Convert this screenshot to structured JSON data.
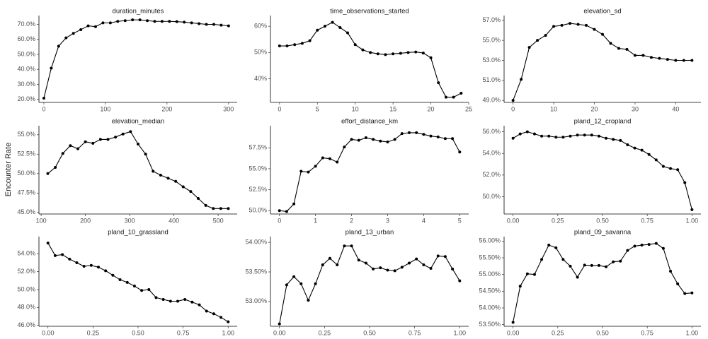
{
  "ylabel": "Encounter Rate",
  "chart_data": [
    {
      "type": "line",
      "title": "duration_minutes",
      "color": "#000000",
      "x": [
        0,
        12,
        24,
        36,
        48,
        60,
        72,
        84,
        96,
        108,
        120,
        132,
        144,
        156,
        168,
        180,
        192,
        204,
        216,
        228,
        240,
        252,
        264,
        276,
        288,
        300
      ],
      "values": [
        20.8,
        40.8,
        55.5,
        61,
        64,
        66.5,
        69,
        68.5,
        71,
        71,
        72,
        72.5,
        73,
        73,
        72.5,
        72,
        72,
        72,
        71.8,
        71.5,
        71,
        70.5,
        70,
        70,
        69.5,
        69
      ],
      "xlim": [
        -8,
        314
      ],
      "xticks": [
        0,
        100,
        200,
        300
      ],
      "ylim": [
        18,
        74
      ],
      "yticks": [
        {
          "value": 20,
          "label": "20.0%"
        },
        {
          "value": 30,
          "label": "30.0%"
        },
        {
          "value": 40,
          "label": "40.0%"
        },
        {
          "value": 50,
          "label": "50.0%"
        },
        {
          "value": 60,
          "label": "60.0%"
        },
        {
          "value": 70,
          "label": "70.0%"
        }
      ]
    },
    {
      "type": "line",
      "title": "time_observations_started",
      "color": "#000000",
      "x": [
        0,
        1,
        2,
        3,
        4,
        5,
        6,
        7,
        8,
        9,
        10,
        11,
        12,
        13,
        14,
        15,
        16,
        17,
        18,
        19,
        20,
        21,
        22,
        23,
        24
      ],
      "values": [
        52.5,
        52.5,
        53,
        53.5,
        54.5,
        58.5,
        60,
        61.5,
        59.5,
        57.5,
        53,
        51,
        50,
        49.5,
        49.2,
        49.5,
        49.7,
        50,
        50.2,
        49.8,
        48,
        38.5,
        33,
        33,
        34.5
      ],
      "xlim": [
        -1.2,
        25
      ],
      "xticks": [
        0,
        5,
        10,
        15,
        20,
        25
      ],
      "ylim": [
        31,
        63
      ],
      "yticks": [
        {
          "value": 40,
          "label": "40%"
        },
        {
          "value": 50,
          "label": "50%"
        },
        {
          "value": 60,
          "label": "60%"
        }
      ]
    },
    {
      "type": "line",
      "title": "elevation_sd",
      "color": "#000000",
      "x": [
        0,
        2,
        4,
        6,
        8,
        10,
        12,
        14,
        16,
        18,
        20,
        22,
        24,
        26,
        28,
        30,
        32,
        34,
        36,
        38,
        40,
        42,
        44
      ],
      "values": [
        49,
        51.1,
        54.3,
        55,
        55.5,
        56.4,
        56.5,
        56.7,
        56.6,
        56.5,
        56.1,
        55.6,
        54.7,
        54.2,
        54.1,
        53.5,
        53.5,
        53.3,
        53.2,
        53.1,
        53,
        53,
        53
      ],
      "xlim": [
        -2.2,
        46.2
      ],
      "xticks": [
        0,
        10,
        20,
        30,
        40
      ],
      "ylim": [
        48.8,
        57.2
      ],
      "yticks": [
        {
          "value": 49,
          "label": "49.0%"
        },
        {
          "value": 51,
          "label": "51.0%"
        },
        {
          "value": 53,
          "label": "53.0%"
        },
        {
          "value": 55,
          "label": "55.0%"
        },
        {
          "value": 57,
          "label": "57.0%"
        }
      ]
    },
    {
      "type": "line",
      "title": "elevation_median",
      "color": "#000000",
      "x": [
        115,
        132,
        149,
        166,
        183,
        200,
        217,
        234,
        251,
        268,
        285,
        302,
        319,
        336,
        353,
        370,
        387,
        404,
        421,
        438,
        455,
        472,
        489,
        506,
        523
      ],
      "values": [
        50,
        50.8,
        52.6,
        53.6,
        53.2,
        54.1,
        53.9,
        54.4,
        54.4,
        54.7,
        55.1,
        55.4,
        53.8,
        52.5,
        50.3,
        49.8,
        49.4,
        49,
        48.3,
        47.7,
        46.8,
        45.9,
        45.5,
        45.5,
        45.5
      ],
      "xlim": [
        95,
        543
      ],
      "xticks": [
        100,
        200,
        300,
        400,
        500
      ],
      "ylim": [
        44.8,
        55.8
      ],
      "yticks": [
        {
          "value": 45,
          "label": "45.0%"
        },
        {
          "value": 47.5,
          "label": "47.5%"
        },
        {
          "value": 50,
          "label": "50.0%"
        },
        {
          "value": 52.5,
          "label": "52.5%"
        },
        {
          "value": 55,
          "label": "55.0%"
        }
      ]
    },
    {
      "type": "line",
      "title": "effort_distance_km",
      "color": "#000000",
      "x": [
        0,
        0.2,
        0.4,
        0.6,
        0.8,
        1,
        1.2,
        1.4,
        1.6,
        1.8,
        2,
        2.2,
        2.4,
        2.6,
        2.8,
        3,
        3.2,
        3.4,
        3.6,
        3.8,
        4,
        4.2,
        4.4,
        4.6,
        4.8,
        5
      ],
      "values": [
        50,
        49.9,
        50.8,
        54.7,
        54.6,
        55.3,
        56.3,
        56.2,
        55.8,
        57.6,
        58.5,
        58.4,
        58.7,
        58.5,
        58.3,
        58.2,
        58.5,
        59.2,
        59.3,
        59.3,
        59.1,
        58.9,
        58.8,
        58.6,
        58.6,
        57
      ],
      "xlim": [
        -0.25,
        5.25
      ],
      "xticks": [
        0,
        1,
        2,
        3,
        4,
        5
      ],
      "ylim": [
        49.6,
        59.8
      ],
      "yticks": [
        {
          "value": 50,
          "label": "50.0%"
        },
        {
          "value": 52.5,
          "label": "52.5%"
        },
        {
          "value": 55,
          "label": "55.0%"
        },
        {
          "value": 57.5,
          "label": "57.5%"
        }
      ]
    },
    {
      "type": "line",
      "title": "pland_12_cropland",
      "color": "#000000",
      "x": [
        0,
        0.04,
        0.08,
        0.12,
        0.16,
        0.2,
        0.24,
        0.28,
        0.32,
        0.36,
        0.4,
        0.44,
        0.48,
        0.52,
        0.56,
        0.6,
        0.64,
        0.68,
        0.72,
        0.76,
        0.8,
        0.84,
        0.88,
        0.92,
        0.96,
        1
      ],
      "values": [
        55.4,
        55.8,
        56,
        55.8,
        55.6,
        55.6,
        55.5,
        55.5,
        55.6,
        55.7,
        55.7,
        55.7,
        55.6,
        55.4,
        55.3,
        55.2,
        54.8,
        54.5,
        54.3,
        53.9,
        53.4,
        52.8,
        52.6,
        52.5,
        51.3,
        48.8
      ],
      "xlim": [
        -0.05,
        1.05
      ],
      "xticks": [
        {
          "value": 0,
          "label": "0.00"
        },
        0.25,
        {
          "value": 0.5,
          "label": "0.50"
        },
        0.75,
        {
          "value": 1,
          "label": "1.00"
        }
      ],
      "ylim": [
        48.4,
        56.3
      ],
      "yticks": [
        {
          "value": 50,
          "label": "50.0%"
        },
        {
          "value": 52,
          "label": "52.0%"
        },
        {
          "value": 54,
          "label": "54.0%"
        },
        {
          "value": 56,
          "label": "56.0%"
        }
      ]
    },
    {
      "type": "line",
      "title": "pland_10_grassland",
      "color": "#000000",
      "x": [
        0,
        0.04,
        0.08,
        0.12,
        0.16,
        0.2,
        0.24,
        0.28,
        0.32,
        0.36,
        0.4,
        0.44,
        0.48,
        0.52,
        0.56,
        0.6,
        0.64,
        0.68,
        0.72,
        0.76,
        0.8,
        0.84,
        0.88,
        0.92,
        0.96,
        1
      ],
      "values": [
        55.2,
        53.8,
        53.9,
        53.4,
        53,
        52.6,
        52.7,
        52.5,
        52.1,
        51.6,
        51.1,
        50.8,
        50.4,
        49.9,
        50,
        49.1,
        48.9,
        48.7,
        48.7,
        48.9,
        48.6,
        48.3,
        47.6,
        47.3,
        46.9,
        46.4
      ],
      "xlim": [
        -0.05,
        1.05
      ],
      "xticks": [
        {
          "value": 0,
          "label": "0.00"
        },
        0.25,
        {
          "value": 0.5,
          "label": "0.50"
        },
        0.75,
        {
          "value": 1,
          "label": "1.00"
        }
      ],
      "ylim": [
        45.9,
        55.6
      ],
      "yticks": [
        {
          "value": 46,
          "label": "46.0%"
        },
        {
          "value": 48,
          "label": "48.0%"
        },
        {
          "value": 50,
          "label": "50.0%"
        },
        {
          "value": 52,
          "label": "52.0%"
        },
        {
          "value": 54,
          "label": "54.0%"
        }
      ]
    },
    {
      "type": "line",
      "title": "pland_13_urban",
      "color": "#000000",
      "x": [
        0,
        0.04,
        0.08,
        0.12,
        0.16,
        0.2,
        0.24,
        0.28,
        0.32,
        0.36,
        0.4,
        0.44,
        0.48,
        0.52,
        0.56,
        0.6,
        0.64,
        0.68,
        0.72,
        0.76,
        0.8,
        0.84,
        0.88,
        0.92,
        0.96,
        1
      ],
      "values": [
        52.62,
        53.28,
        53.42,
        53.3,
        53.02,
        53.3,
        53.62,
        53.73,
        53.62,
        53.94,
        53.94,
        53.7,
        53.65,
        53.55,
        53.57,
        53.53,
        53.52,
        53.58,
        53.65,
        53.72,
        53.62,
        53.56,
        53.77,
        53.76,
        53.55,
        53.35
      ],
      "xlim": [
        -0.05,
        1.05
      ],
      "xticks": [
        {
          "value": 0,
          "label": "0.00"
        },
        0.25,
        {
          "value": 0.5,
          "label": "0.50"
        },
        0.75,
        {
          "value": 1,
          "label": "1.00"
        }
      ],
      "ylim": [
        52.58,
        54.05
      ],
      "yticks": [
        {
          "value": 53,
          "label": "53.00%"
        },
        {
          "value": 53.5,
          "label": "53.50%"
        },
        {
          "value": 54,
          "label": "54.00%"
        }
      ]
    },
    {
      "type": "line",
      "title": "pland_09_savanna",
      "color": "#000000",
      "x": [
        0,
        0.04,
        0.08,
        0.12,
        0.16,
        0.2,
        0.24,
        0.28,
        0.32,
        0.36,
        0.4,
        0.44,
        0.48,
        0.52,
        0.56,
        0.6,
        0.64,
        0.68,
        0.72,
        0.76,
        0.8,
        0.84,
        0.88,
        0.92,
        0.96,
        1
      ],
      "values": [
        53.57,
        54.65,
        55.02,
        55,
        55.45,
        55.88,
        55.8,
        55.45,
        55.25,
        54.92,
        55.28,
        55.27,
        55.27,
        55.23,
        55.38,
        55.4,
        55.72,
        55.85,
        55.88,
        55.9,
        55.93,
        55.78,
        55.1,
        54.72,
        54.43,
        54.45
      ],
      "xlim": [
        -0.05,
        1.05
      ],
      "xticks": [
        {
          "value": 0,
          "label": "0.00"
        },
        0.25,
        {
          "value": 0.5,
          "label": "0.50"
        },
        0.75,
        {
          "value": 1,
          "label": "1.00"
        }
      ],
      "ylim": [
        53.45,
        56.05
      ],
      "yticks": [
        {
          "value": 53.5,
          "label": "53.50%"
        },
        {
          "value": 54,
          "label": "54.00%"
        },
        {
          "value": 54.5,
          "label": "54.50%"
        },
        {
          "value": 55,
          "label": "55.00%"
        },
        {
          "value": 55.5,
          "label": "55.50%"
        },
        {
          "value": 56,
          "label": "56.00%"
        }
      ]
    }
  ]
}
